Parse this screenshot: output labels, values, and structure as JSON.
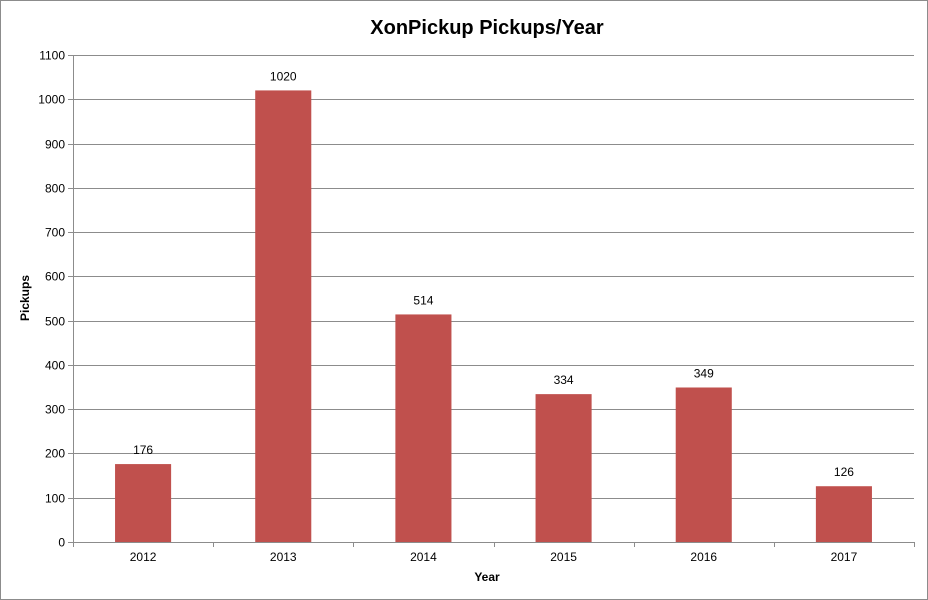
{
  "chart_data": {
    "type": "bar",
    "title": "XonPickup Pickups/Year",
    "xlabel": "Year",
    "ylabel": "Pickups",
    "categories": [
      "2012",
      "2013",
      "2014",
      "2015",
      "2016",
      "2017"
    ],
    "values": [
      176,
      1020,
      514,
      334,
      349,
      126
    ],
    "data_labels": [
      "176",
      "1020",
      "514",
      "334",
      "349",
      "126"
    ],
    "ylim": [
      0,
      1100
    ],
    "yticks": [
      0,
      100,
      200,
      300,
      400,
      500,
      600,
      700,
      800,
      900,
      1000,
      1100
    ],
    "grid": true,
    "legend": "none",
    "bar_color": "#c0504d"
  }
}
